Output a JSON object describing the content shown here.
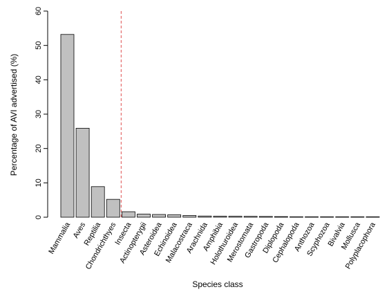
{
  "chart_data": {
    "type": "bar",
    "title": "",
    "xlabel": "Species class",
    "ylabel": "Percentage of AVI advertised (%)",
    "ylim": [
      0,
      60
    ],
    "yticks": [
      0,
      10,
      20,
      30,
      40,
      50,
      60
    ],
    "grid": false,
    "legend": "none",
    "categories": [
      "Mammalia",
      "Aves",
      "Reptilia",
      "Chondrichthyes",
      "Insecta",
      "Actinopterygii",
      "Asteroidea",
      "Echinoidea",
      "Malacostraca",
      "Arachnida",
      "Amphibia",
      "Holothuroidea",
      "Merostomata",
      "Gastropoda",
      "Diplopoda",
      "Cephalopoda",
      "Anthozoa",
      "Scyphozoa",
      "Bivalvia",
      "Mollusca",
      "Polyplacophora"
    ],
    "values": [
      53.2,
      25.9,
      8.9,
      5.2,
      1.6,
      0.9,
      0.8,
      0.7,
      0.5,
      0.35,
      0.3,
      0.28,
      0.25,
      0.22,
      0.18,
      0.08,
      0.06,
      0.05,
      0.04,
      0.03,
      0.02
    ],
    "reference_line": {
      "after_category": "Chondrichthyes",
      "style": "dashed",
      "color": "#e05050"
    },
    "colors": {
      "bar_fill": "#c0c0c0",
      "bar_stroke": "#000000",
      "axis": "#000000"
    }
  }
}
